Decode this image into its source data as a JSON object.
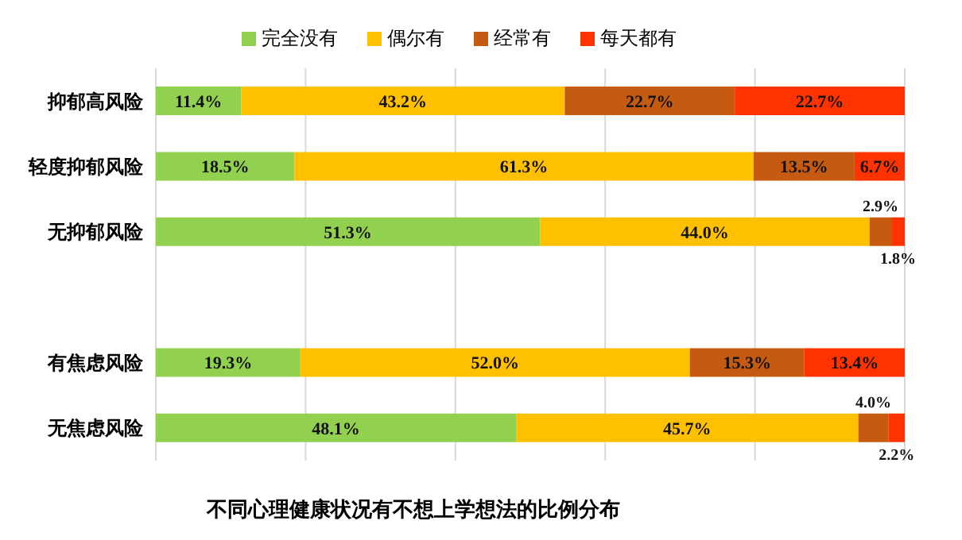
{
  "chart_data": {
    "type": "bar",
    "orientation": "horizontal",
    "stacked": true,
    "title": "不同心理健康状况有不想上学想法的比例分布",
    "categories": [
      "抑郁高风险",
      "轻度抑郁风险",
      "无抑郁风险",
      null,
      "有焦虑风险",
      "无焦虑风险"
    ],
    "series": [
      {
        "name": "完全没有",
        "color": "#92d050",
        "values": [
          11.4,
          18.5,
          51.3,
          null,
          19.3,
          48.1
        ],
        "value_labels": [
          "11.4%",
          "18.5%",
          "51.3%",
          null,
          "19.3%",
          "48.1%"
        ]
      },
      {
        "name": "偶尔有",
        "color": "#ffc000",
        "values": [
          43.2,
          61.3,
          44.0,
          null,
          52.0,
          45.7
        ],
        "value_labels": [
          "43.2%",
          "61.3%",
          "44.0%",
          null,
          "52.0%",
          "45.7%"
        ]
      },
      {
        "name": "经常有",
        "color": "#c55a11",
        "values": [
          22.7,
          13.5,
          2.9,
          null,
          15.3,
          4.0
        ],
        "value_labels": [
          "22.7%",
          "13.5%",
          "2.9%",
          null,
          "15.3%",
          "4.0%"
        ]
      },
      {
        "name": "每天都有",
        "color": "#ff3300",
        "values": [
          22.7,
          6.7,
          1.8,
          null,
          13.4,
          2.2
        ],
        "value_labels": [
          "22.7%",
          "6.7%",
          "1.8%",
          null,
          "13.4%",
          "2.2%"
        ]
      }
    ],
    "xlim": [
      0,
      100
    ],
    "xticks": [
      {
        "value": 0,
        "label": null
      },
      {
        "value": 20,
        "label": null
      },
      {
        "value": 40,
        "label": null
      },
      {
        "value": 60,
        "label": null
      },
      {
        "value": 80,
        "label": null
      },
      {
        "value": 100,
        "label": null
      }
    ],
    "tick_labels": "y",
    "grid": "x",
    "legend": "top"
  }
}
